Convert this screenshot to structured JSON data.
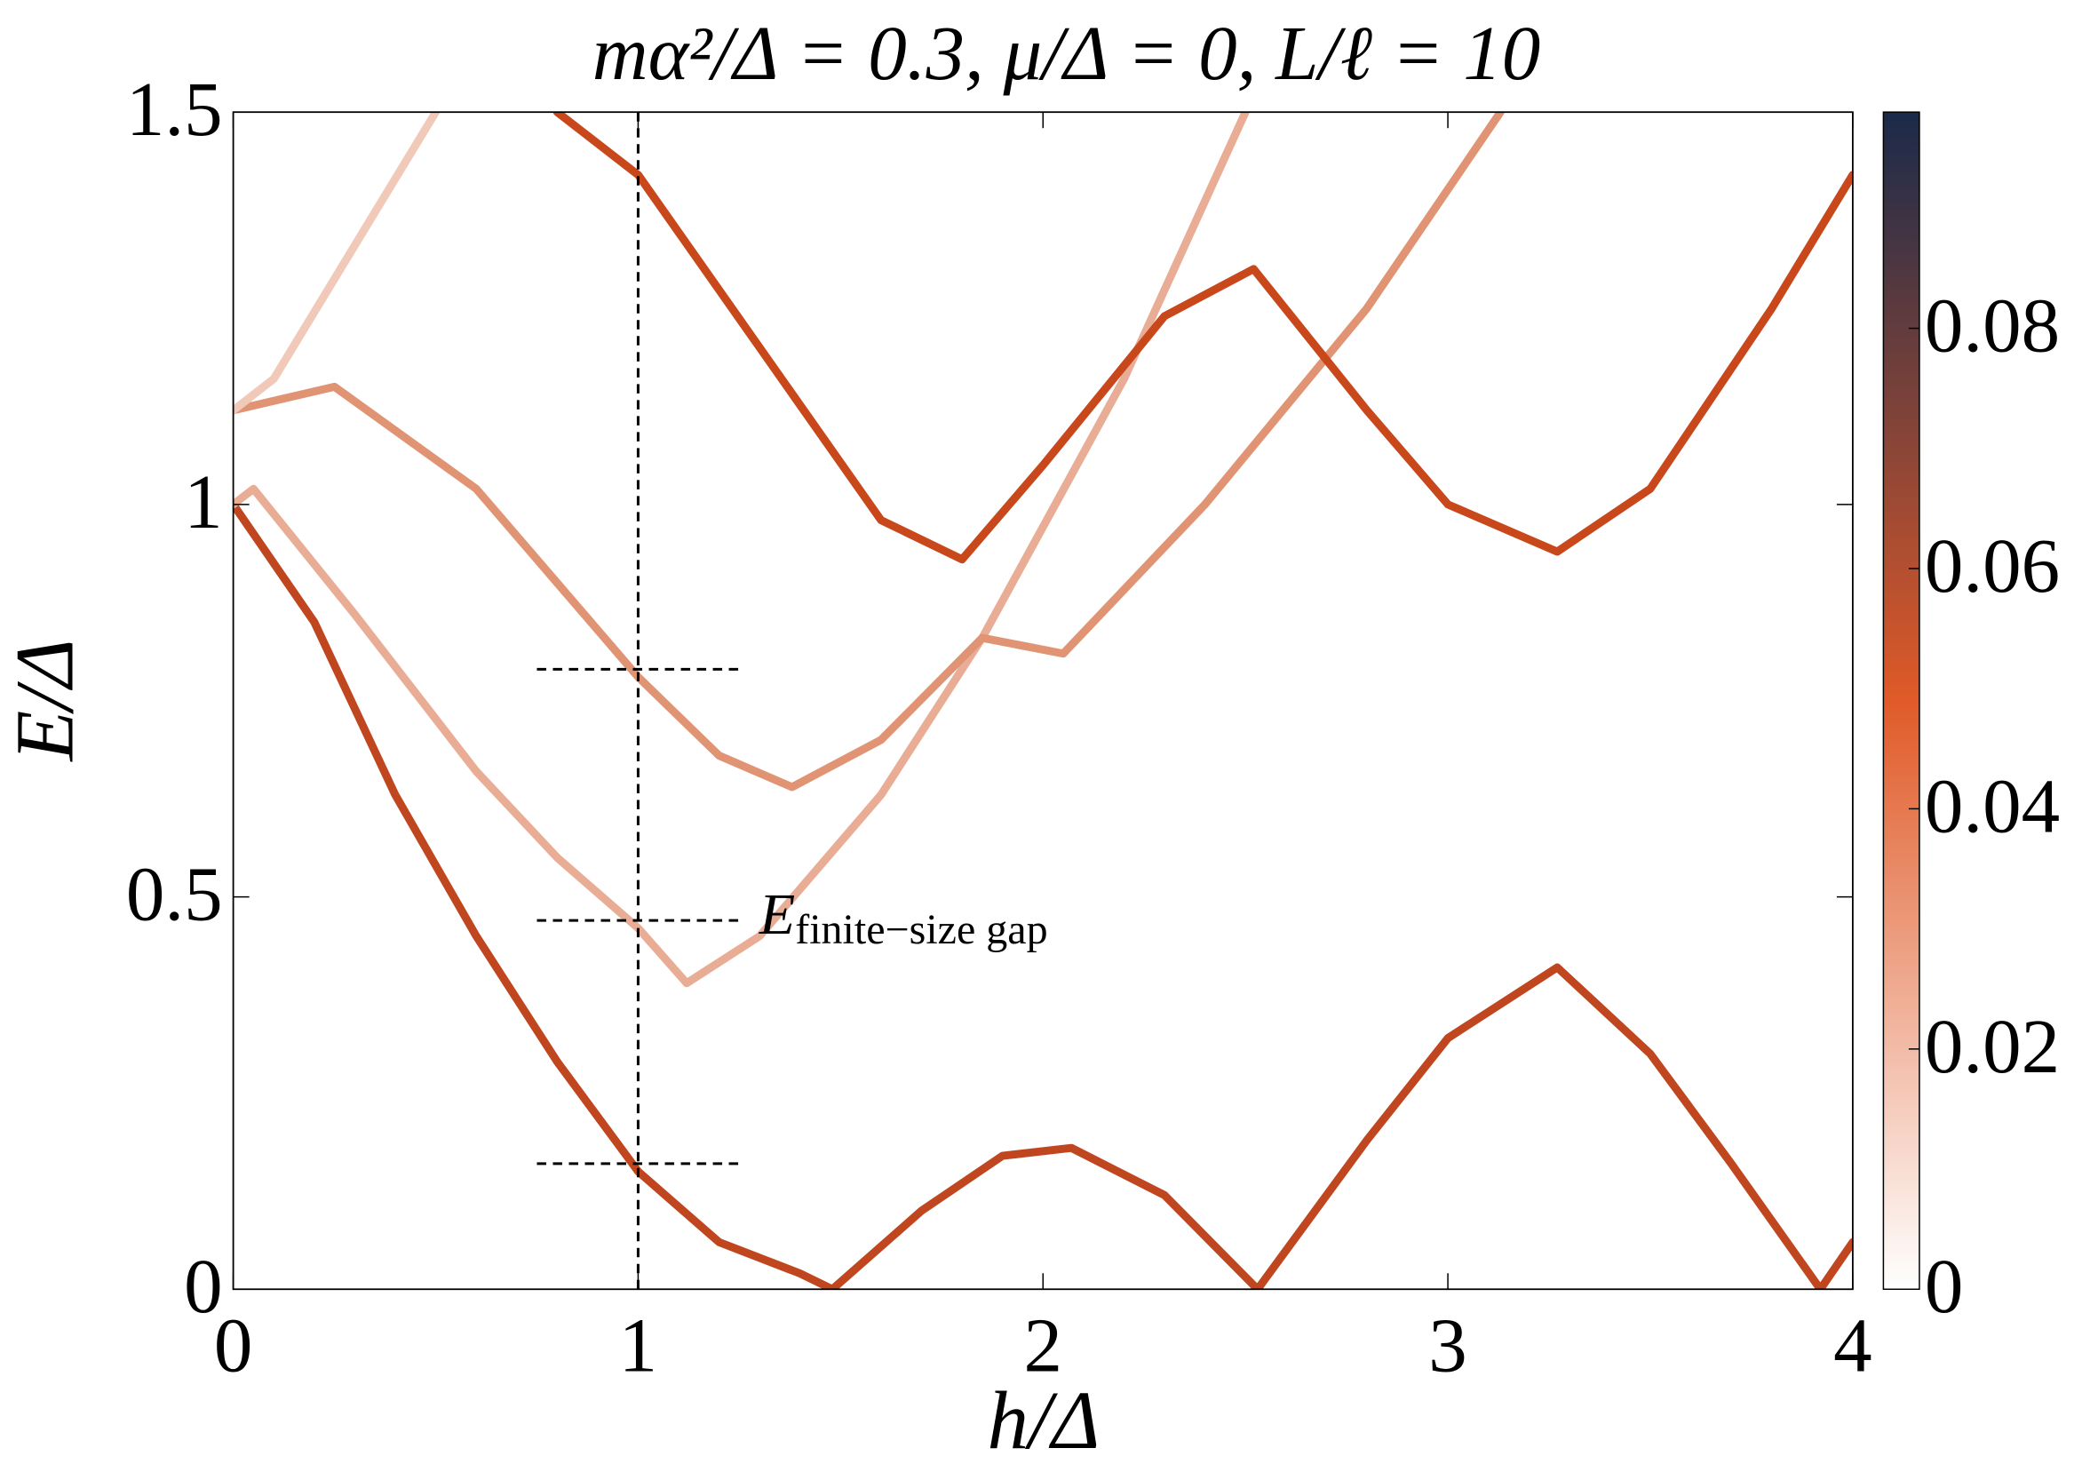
{
  "chart_data": {
    "type": "line",
    "title": "mα²/Δ = 0.3, μ/Δ = 0, L/ℓ = 10",
    "xlabel": "h/Δ",
    "ylabel": "E/Δ",
    "xlim": [
      0,
      4
    ],
    "ylim": [
      0,
      1.5
    ],
    "xticks": [
      0,
      1,
      2,
      3,
      4
    ],
    "yticks": [
      0,
      0.5,
      1,
      1.5
    ],
    "series": [
      {
        "color": "#c0461f",
        "x": [
          0,
          0.2,
          0.4,
          0.6,
          0.8,
          1.0,
          1.2,
          1.4,
          1.48,
          1.7,
          1.9,
          2.07,
          2.3,
          2.53,
          2.8,
          3.0,
          3.27,
          3.5,
          3.7,
          3.92,
          4.0
        ],
        "values": [
          1.0,
          0.85,
          0.63,
          0.45,
          0.29,
          0.15,
          0.06,
          0.02,
          0,
          0.1,
          0.17,
          0.18,
          0.12,
          0,
          0.19,
          0.32,
          0.41,
          0.3,
          0.16,
          0,
          0.06
        ]
      },
      {
        "color": "#e9ad96",
        "x": [
          0,
          0.05,
          0.3,
          0.6,
          0.8,
          1.0,
          1.12,
          1.3,
          1.6,
          1.85,
          2.2,
          2.5
        ],
        "values": [
          1.0,
          1.02,
          0.86,
          0.66,
          0.55,
          0.46,
          0.39,
          0.45,
          0.63,
          0.83,
          1.16,
          1.5
        ]
      },
      {
        "color": "#e19474",
        "x": [
          0,
          0.25,
          0.6,
          1.0,
          1.2,
          1.38,
          1.6,
          1.85,
          2.05,
          2.4,
          2.8,
          3.13
        ],
        "values": [
          1.12,
          1.15,
          1.02,
          0.78,
          0.68,
          0.64,
          0.7,
          0.83,
          0.81,
          1.0,
          1.25,
          1.5
        ]
      },
      {
        "color": "#f1c9b9",
        "x": [
          0,
          0.1,
          0.3,
          0.5
        ],
        "values": [
          1.12,
          1.16,
          1.33,
          1.5
        ]
      },
      {
        "color": "#c8481c",
        "x": [
          0.8,
          1.0,
          1.3,
          1.6,
          1.8,
          2.0,
          2.3,
          2.52,
          2.8,
          3.0,
          3.27,
          3.5,
          3.8,
          4.0
        ],
        "values": [
          1.5,
          1.42,
          1.2,
          0.98,
          0.93,
          1.05,
          1.24,
          1.3,
          1.12,
          1.0,
          0.94,
          1.02,
          1.25,
          1.42
        ]
      }
    ],
    "vline": 1,
    "hlines": [
      0.16,
      0.47,
      0.79
    ],
    "hline_span": [
      0.75,
      1.25
    ],
    "annotation": {
      "text": "E",
      "subscript": "finite−size gap"
    },
    "colorbar": {
      "lim": [
        0,
        0.098
      ],
      "ticks": [
        0,
        0.02,
        0.04,
        0.06,
        0.08
      ],
      "colormap": [
        "#ffffff",
        "#e05a28",
        "#1a2a4a"
      ]
    }
  }
}
